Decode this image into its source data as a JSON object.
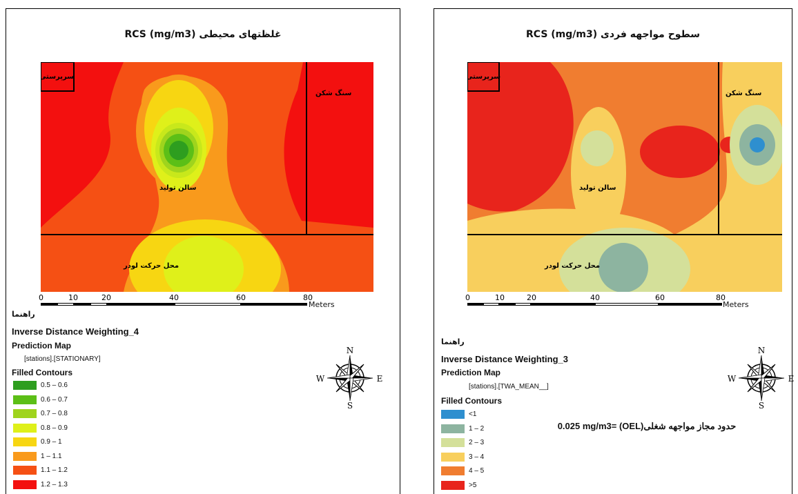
{
  "left": {
    "title": "غلظتهای محیطی RCS (mg/m3)",
    "zones": {
      "supervisor": "سرپرستی",
      "crusher": "سنگ شکن",
      "production": "سالن تولید",
      "loader": "محل حرکت لودر"
    },
    "scale": {
      "ticks": [
        "0",
        "10",
        "20",
        "40",
        "60",
        "80"
      ],
      "units": "Meters"
    },
    "legend": {
      "heading": "راهنما",
      "layer": "Inverse Distance Weighting_4",
      "map_type": "Prediction Map",
      "field": "[stations].[STATIONARY]",
      "contours_title": "Filled Contours",
      "items": [
        {
          "label": "0.5 – 0.6",
          "color": "#2e9e1f"
        },
        {
          "label": "0.6 – 0.7",
          "color": "#5cbf17"
        },
        {
          "label": "0.7 – 0.8",
          "color": "#9fd41d"
        },
        {
          "label": "0.8 – 0.9",
          "color": "#dff01a"
        },
        {
          "label": "0.9 – 1",
          "color": "#f7d612"
        },
        {
          "label": "1 – 1.1",
          "color": "#f99a1c"
        },
        {
          "label": "1.1 – 1.2",
          "color": "#f55014"
        },
        {
          "label": "1.2 – 1.3",
          "color": "#f3100f"
        }
      ]
    },
    "compass": {
      "n": "N",
      "s": "S",
      "e": "E",
      "w": "W"
    }
  },
  "right": {
    "title": "سطوح مواجهه فردی RCS (mg/m3)",
    "zones": {
      "supervisor": "سرپرستی",
      "crusher": "سنگ شکن",
      "production": "سالن تولید",
      "loader": "محل حرکت لودر"
    },
    "scale": {
      "ticks": [
        "0",
        "10",
        "20",
        "40",
        "60",
        "80"
      ],
      "units": "Meters"
    },
    "legend": {
      "heading": "راهنما",
      "layer": "Inverse Distance Weighting_3",
      "map_type": "Prediction Map",
      "field": "[stations].[TWA_MEAN__]",
      "contours_title": "Filled Contours",
      "items": [
        {
          "label": "<1",
          "color": "#2e8fcf"
        },
        {
          "label": "1 – 2",
          "color": "#8db4a0"
        },
        {
          "label": "2 – 3",
          "color": "#d4e09a"
        },
        {
          "label": "3 – 4",
          "color": "#f8cf5d"
        },
        {
          "label": "4 – 5",
          "color": "#f07d30"
        },
        {
          "label": ">5",
          "color": "#e8241c"
        }
      ]
    },
    "oel_note": "حدود مجاز مواجهه شغلی(OEL) =0.025 mg/m3",
    "compass": {
      "n": "N",
      "s": "S",
      "e": "E",
      "w": "W"
    }
  }
}
